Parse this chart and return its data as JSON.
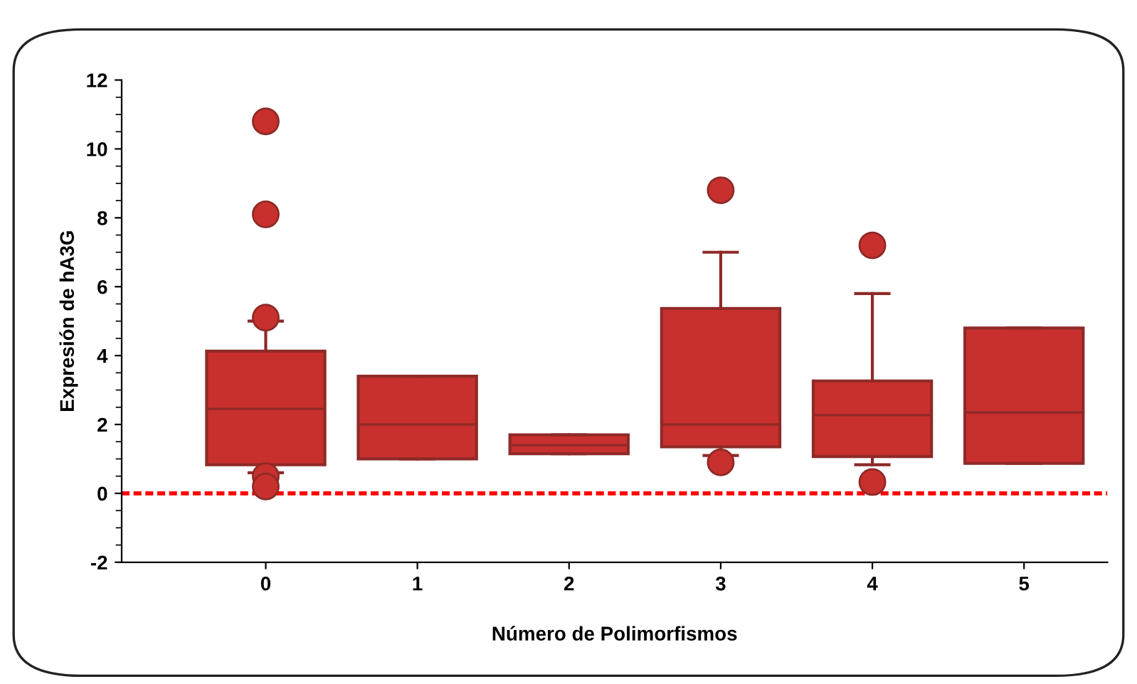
{
  "chart_data": {
    "type": "box",
    "xlabel": "Número de Polimorfismos",
    "ylabel": "Expresión de hA3G",
    "categories": [
      "0",
      "1",
      "2",
      "3",
      "4",
      "5"
    ],
    "boxes": [
      {
        "low": 0.6,
        "q1": 0.83,
        "median": 2.45,
        "q3": 4.13,
        "high": 5.0,
        "outliers": [
          10.8,
          8.1,
          5.1,
          0.5,
          0.2
        ]
      },
      {
        "low": 1.0,
        "q1": 1.0,
        "median": 2.0,
        "q3": 3.4,
        "high": 3.4
      },
      {
        "low": 1.15,
        "q1": 1.15,
        "median": 1.4,
        "q3": 1.7,
        "high": 1.7
      },
      {
        "low": 1.1,
        "q1": 1.35,
        "median": 2.0,
        "q3": 5.37,
        "high": 7.0,
        "outliers": [
          8.8,
          0.9
        ]
      },
      {
        "low": 0.83,
        "q1": 1.07,
        "median": 2.27,
        "q3": 3.26,
        "high": 5.8,
        "outliers": [
          7.2,
          0.33
        ]
      },
      {
        "low": 0.87,
        "q1": 0.87,
        "median": 2.35,
        "q3": 4.8,
        "high": 4.8
      }
    ],
    "color": "#c8302e",
    "ylim": [
      -2,
      12
    ],
    "yticks": [
      -2,
      0,
      2,
      4,
      6,
      8,
      10,
      12
    ],
    "ref_lines": [
      {
        "axis": "y",
        "value": 0,
        "color": "#ff0000",
        "line_style": "dashed"
      }
    ],
    "grid": false,
    "legend": false
  }
}
